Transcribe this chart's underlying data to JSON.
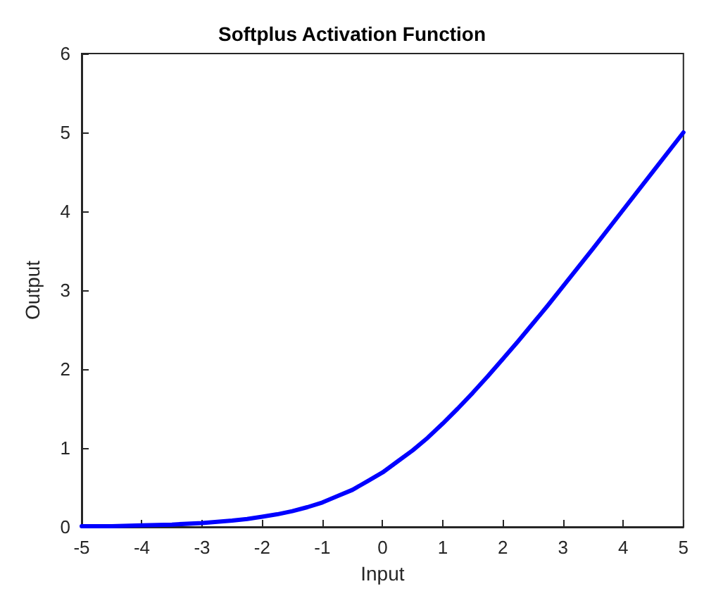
{
  "chart_data": {
    "type": "line",
    "title": "Softplus Activation Function",
    "xlabel": "Input",
    "ylabel": "Output",
    "x": [
      -5,
      -4.5,
      -4,
      -3.5,
      -3,
      -2.5,
      -2.25,
      -2,
      -1.75,
      -1.5,
      -1.25,
      -1,
      -0.75,
      -0.5,
      -0.25,
      0,
      0.25,
      0.5,
      0.75,
      1,
      1.25,
      1.5,
      1.75,
      2,
      2.25,
      2.5,
      2.75,
      3,
      3.5,
      4,
      4.5,
      5
    ],
    "series": [
      {
        "color": "#0000ff",
        "values": [
          0.01,
          0.01,
          0.02,
          0.03,
          0.05,
          0.08,
          0.1,
          0.13,
          0.16,
          0.2,
          0.25,
          0.31,
          0.39,
          0.47,
          0.58,
          0.69,
          0.83,
          0.97,
          1.13,
          1.31,
          1.5,
          1.7,
          1.91,
          2.13,
          2.35,
          2.58,
          2.81,
          3.05,
          3.53,
          4.02,
          4.51,
          5.0
        ]
      }
    ],
    "xlim": [
      -5,
      5
    ],
    "xticks": [
      -5,
      -4,
      -3,
      -2,
      -1,
      0,
      1,
      2,
      3,
      4,
      5
    ],
    "ylim": [
      0,
      6
    ],
    "yticks": [
      0,
      1,
      2,
      3,
      4,
      5,
      6
    ],
    "grid": false,
    "marker": "none",
    "line_style": "solid"
  }
}
